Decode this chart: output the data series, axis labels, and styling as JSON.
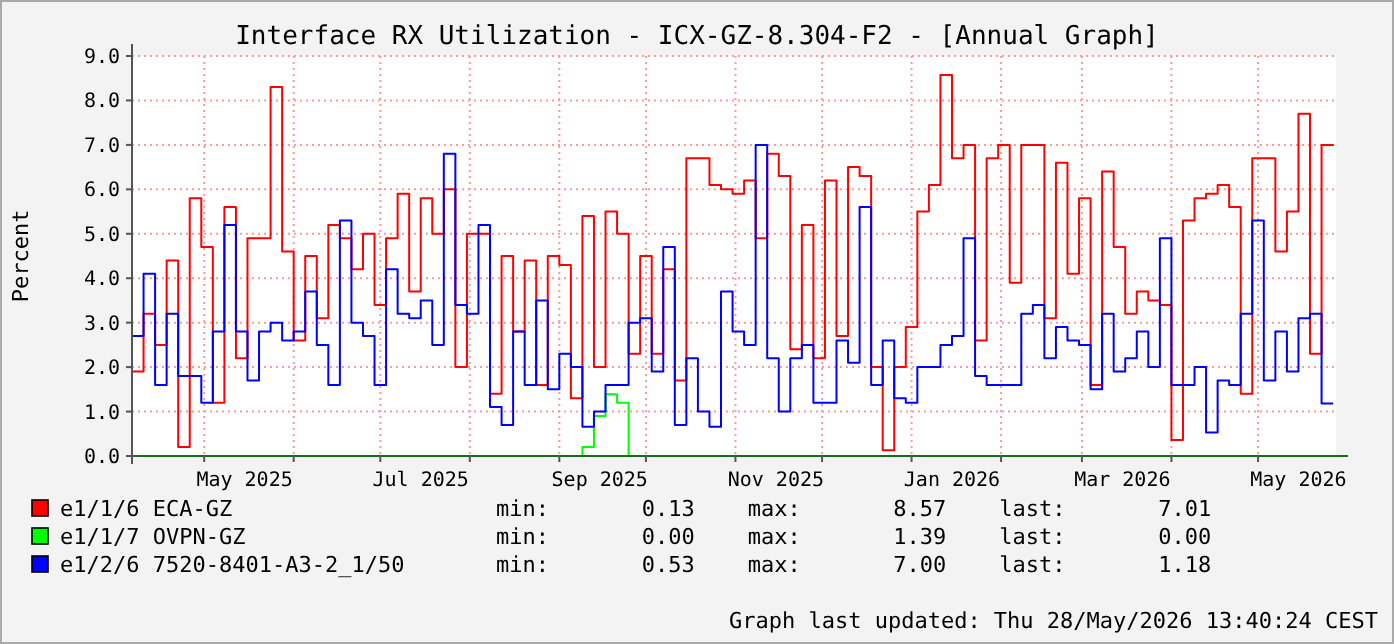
{
  "chart_data": {
    "type": "step",
    "title": "Interface RX Utilization - ICX-GZ-8.304-F2 - [Annual Graph]",
    "ylabel": "Percent",
    "legend": "bottom",
    "grid": true,
    "marker": "none",
    "line_style": "solid",
    "x": [
      "2025-04-06",
      "2025-04-10",
      "2025-04-14",
      "2025-04-18",
      "2025-04-22",
      "2025-04-26",
      "2025-04-30",
      "2025-05-04",
      "2025-05-08",
      "2025-05-12",
      "2025-05-16",
      "2025-05-20",
      "2025-05-24",
      "2025-05-28",
      "2025-06-01",
      "2025-06-05",
      "2025-06-09",
      "2025-06-13",
      "2025-06-17",
      "2025-06-21",
      "2025-06-25",
      "2025-06-29",
      "2025-07-03",
      "2025-07-07",
      "2025-07-11",
      "2025-07-15",
      "2025-07-19",
      "2025-07-23",
      "2025-07-27",
      "2025-07-31",
      "2025-08-04",
      "2025-08-08",
      "2025-08-12",
      "2025-08-16",
      "2025-08-20",
      "2025-08-24",
      "2025-08-28",
      "2025-09-01",
      "2025-09-05",
      "2025-09-09",
      "2025-09-13",
      "2025-09-17",
      "2025-09-21",
      "2025-09-25",
      "2025-09-29",
      "2025-10-03",
      "2025-10-07",
      "2025-10-11",
      "2025-10-15",
      "2025-10-19",
      "2025-10-23",
      "2025-10-27",
      "2025-10-31",
      "2025-11-04",
      "2025-11-08",
      "2025-11-12",
      "2025-11-16",
      "2025-11-20",
      "2025-11-24",
      "2025-11-28",
      "2025-12-02",
      "2025-12-06",
      "2025-12-10",
      "2025-12-14",
      "2025-12-18",
      "2025-12-22",
      "2025-12-26",
      "2025-12-30",
      "2026-01-03",
      "2026-01-07",
      "2026-01-11",
      "2026-01-15",
      "2026-01-19",
      "2026-01-23",
      "2026-01-27",
      "2026-01-31",
      "2026-02-04",
      "2026-02-08",
      "2026-02-12",
      "2026-02-16",
      "2026-02-20",
      "2026-02-24",
      "2026-02-28",
      "2026-03-04",
      "2026-03-08",
      "2026-03-12",
      "2026-03-16",
      "2026-03-20",
      "2026-03-24",
      "2026-03-28",
      "2026-04-01",
      "2026-04-05",
      "2026-04-09",
      "2026-04-13",
      "2026-04-17",
      "2026-04-21",
      "2026-04-25",
      "2026-04-29",
      "2026-05-03",
      "2026-05-07",
      "2026-05-11",
      "2026-05-15",
      "2026-05-19",
      "2026-05-23",
      "2026-05-27"
    ],
    "series": [
      {
        "name": "e1/1/6 ECA-GZ",
        "color": "#ff0000",
        "values": [
          1.9,
          3.2,
          2.5,
          4.4,
          0.2,
          5.8,
          4.7,
          1.2,
          5.6,
          2.2,
          4.9,
          4.9,
          8.3,
          4.6,
          2.6,
          4.5,
          3.1,
          5.2,
          4.9,
          4.2,
          5.0,
          3.4,
          4.9,
          5.9,
          3.7,
          5.8,
          5.0,
          6.0,
          2.0,
          5.0,
          5.0,
          1.4,
          4.5,
          2.8,
          4.4,
          1.6,
          4.5,
          4.3,
          1.3,
          5.4,
          2.0,
          5.5,
          5.0,
          2.3,
          4.5,
          2.3,
          4.2,
          1.7,
          6.7,
          6.7,
          6.1,
          6.0,
          5.9,
          6.2,
          4.9,
          6.8,
          6.3,
          2.4,
          5.2,
          2.2,
          6.2,
          2.7,
          6.5,
          6.3,
          2.0,
          0.13,
          2.0,
          2.9,
          5.5,
          6.1,
          8.57,
          6.7,
          7.0,
          2.6,
          6.7,
          7.0,
          3.9,
          7.0,
          7.0,
          3.1,
          6.6,
          4.1,
          5.8,
          1.6,
          6.4,
          4.7,
          3.2,
          3.7,
          3.5,
          3.4,
          0.36,
          5.3,
          5.8,
          5.9,
          6.1,
          5.6,
          1.4,
          6.7,
          6.7,
          4.6,
          5.5,
          7.7,
          2.3,
          7.0,
          7.01
        ]
      },
      {
        "name": "e1/1/7 OVPN-GZ",
        "color": "#00ff00",
        "values": [
          null,
          null,
          null,
          null,
          null,
          null,
          null,
          null,
          null,
          null,
          null,
          null,
          null,
          null,
          null,
          null,
          null,
          null,
          null,
          null,
          null,
          null,
          null,
          null,
          null,
          null,
          null,
          null,
          null,
          null,
          null,
          null,
          null,
          null,
          null,
          null,
          null,
          null,
          0.0,
          0.2,
          0.9,
          1.39,
          1.2,
          0.0,
          null,
          null,
          null,
          null,
          null,
          null,
          null,
          null,
          null,
          null,
          null,
          null,
          null,
          null,
          null,
          null,
          null,
          null,
          null,
          null,
          null,
          null,
          null,
          null,
          null,
          null,
          null,
          null,
          null,
          null,
          null,
          null,
          null,
          null,
          null,
          null,
          null,
          null,
          null,
          null,
          null,
          null,
          null,
          null,
          null,
          null,
          null,
          null,
          null,
          null,
          null,
          null,
          null,
          null,
          null,
          null,
          null,
          null,
          null,
          null,
          null
        ]
      },
      {
        "name": "e1/2/6 7520-8401-A3-2_1/50",
        "color": "#0000ff",
        "values": [
          2.7,
          4.1,
          1.6,
          3.2,
          1.8,
          1.8,
          1.2,
          2.8,
          5.2,
          2.8,
          1.7,
          2.8,
          3.0,
          2.6,
          2.8,
          3.7,
          2.5,
          1.6,
          5.3,
          3.0,
          2.7,
          1.6,
          4.2,
          3.2,
          3.1,
          3.5,
          2.5,
          6.8,
          3.4,
          3.2,
          5.2,
          1.1,
          0.7,
          2.8,
          1.6,
          3.5,
          1.5,
          2.3,
          2.0,
          0.66,
          1.0,
          1.6,
          1.6,
          3.0,
          3.1,
          1.9,
          4.7,
          0.7,
          2.2,
          1.0,
          0.66,
          3.7,
          2.8,
          2.5,
          7.0,
          2.2,
          1.0,
          2.2,
          2.5,
          1.2,
          1.2,
          2.6,
          2.1,
          5.6,
          1.6,
          2.6,
          1.3,
          1.2,
          2.0,
          2.0,
          2.5,
          2.7,
          4.9,
          1.8,
          1.6,
          1.6,
          1.6,
          3.2,
          3.4,
          2.2,
          2.9,
          2.6,
          2.5,
          1.5,
          3.2,
          1.9,
          2.2,
          2.8,
          2.0,
          4.9,
          1.6,
          1.6,
          2.0,
          0.53,
          1.7,
          1.6,
          3.2,
          5.3,
          1.7,
          2.8,
          1.9,
          3.1,
          3.2,
          1.18,
          1.18
        ]
      }
    ],
    "xlim": [
      "2025-04-06",
      "2026-05-28"
    ],
    "xticks": [
      {
        "value": "2025-05-01",
        "label": null
      },
      {
        "value": "2025-05-15",
        "label": "May 2025"
      },
      {
        "value": "2025-06-01",
        "label": null
      },
      {
        "value": "2025-07-01",
        "label": null
      },
      {
        "value": "2025-07-15",
        "label": "Jul 2025"
      },
      {
        "value": "2025-08-01",
        "label": null
      },
      {
        "value": "2025-09-01",
        "label": null
      },
      {
        "value": "2025-09-15",
        "label": "Sep 2025"
      },
      {
        "value": "2025-10-01",
        "label": null
      },
      {
        "value": "2025-11-01",
        "label": null
      },
      {
        "value": "2025-11-15",
        "label": "Nov 2025"
      },
      {
        "value": "2025-12-01",
        "label": null
      },
      {
        "value": "2026-01-01",
        "label": null
      },
      {
        "value": "2026-01-15",
        "label": "Jan 2026"
      },
      {
        "value": "2026-02-01",
        "label": null
      },
      {
        "value": "2026-03-01",
        "label": null
      },
      {
        "value": "2026-03-15",
        "label": "Mar 2026"
      },
      {
        "value": "2026-04-01",
        "label": null
      },
      {
        "value": "2026-05-01",
        "label": null
      },
      {
        "value": "2026-05-15",
        "label": "May 2026"
      }
    ],
    "ylim": [
      0,
      9
    ],
    "yticks": [
      {
        "value": 0,
        "label": "0.0"
      },
      {
        "value": 1,
        "label": "1.0"
      },
      {
        "value": 2,
        "label": "2.0"
      },
      {
        "value": 3,
        "label": "3.0"
      },
      {
        "value": 4,
        "label": "4.0"
      },
      {
        "value": 5,
        "label": "5.0"
      },
      {
        "value": 6,
        "label": "6.0"
      },
      {
        "value": 7,
        "label": "7.0"
      },
      {
        "value": 8,
        "label": "8.0"
      },
      {
        "value": 9,
        "label": "9.0"
      }
    ],
    "annotations": [
      "min:       0.13    max:       8.57    last:       7.01",
      "min:       0.00    max:       1.39    last:       0.00",
      "min:       0.53    max:       7.00    last:       1.18",
      "Graph last updated: Thu 28/May/2026 13:40:24 CEST"
    ]
  }
}
